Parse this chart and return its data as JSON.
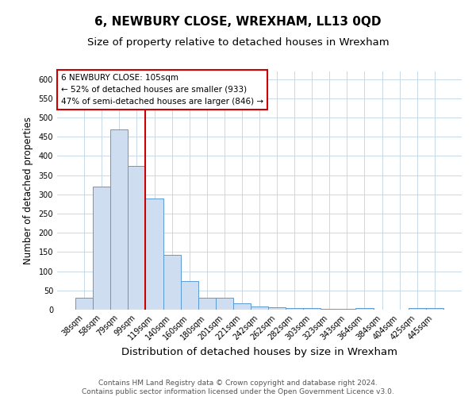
{
  "title": "6, NEWBURY CLOSE, WREXHAM, LL13 0QD",
  "subtitle": "Size of property relative to detached houses in Wrexham",
  "xlabel": "Distribution of detached houses by size in Wrexham",
  "ylabel": "Number of detached properties",
  "bar_labels": [
    "38sqm",
    "58sqm",
    "79sqm",
    "99sqm",
    "119sqm",
    "140sqm",
    "160sqm",
    "180sqm",
    "201sqm",
    "221sqm",
    "242sqm",
    "262sqm",
    "282sqm",
    "303sqm",
    "323sqm",
    "343sqm",
    "364sqm",
    "384sqm",
    "404sqm",
    "425sqm",
    "445sqm"
  ],
  "bar_values": [
    32,
    320,
    470,
    375,
    290,
    143,
    75,
    32,
    30,
    17,
    8,
    6,
    5,
    4,
    2,
    2,
    4,
    0,
    0,
    5,
    5
  ],
  "bar_color": "#cfddf0",
  "bar_edge_color": "#5b9bd5",
  "vline_x": 3.5,
  "vline_color": "#cc0000",
  "annotation_text": "6 NEWBURY CLOSE: 105sqm\n← 52% of detached houses are smaller (933)\n47% of semi-detached houses are larger (846) →",
  "annotation_box_color": "#ffffff",
  "annotation_box_edge_color": "#cc0000",
  "ylim": [
    0,
    620
  ],
  "yticks": [
    0,
    50,
    100,
    150,
    200,
    250,
    300,
    350,
    400,
    450,
    500,
    550,
    600
  ],
  "background_color": "#ffffff",
  "grid_color": "#c8d8e8",
  "footer_line1": "Contains HM Land Registry data © Crown copyright and database right 2024.",
  "footer_line2": "Contains public sector information licensed under the Open Government Licence v3.0.",
  "title_fontsize": 11,
  "subtitle_fontsize": 9.5,
  "xlabel_fontsize": 9.5,
  "ylabel_fontsize": 8.5,
  "tick_fontsize": 7,
  "annotation_fontsize": 7.5,
  "footer_fontsize": 6.5
}
